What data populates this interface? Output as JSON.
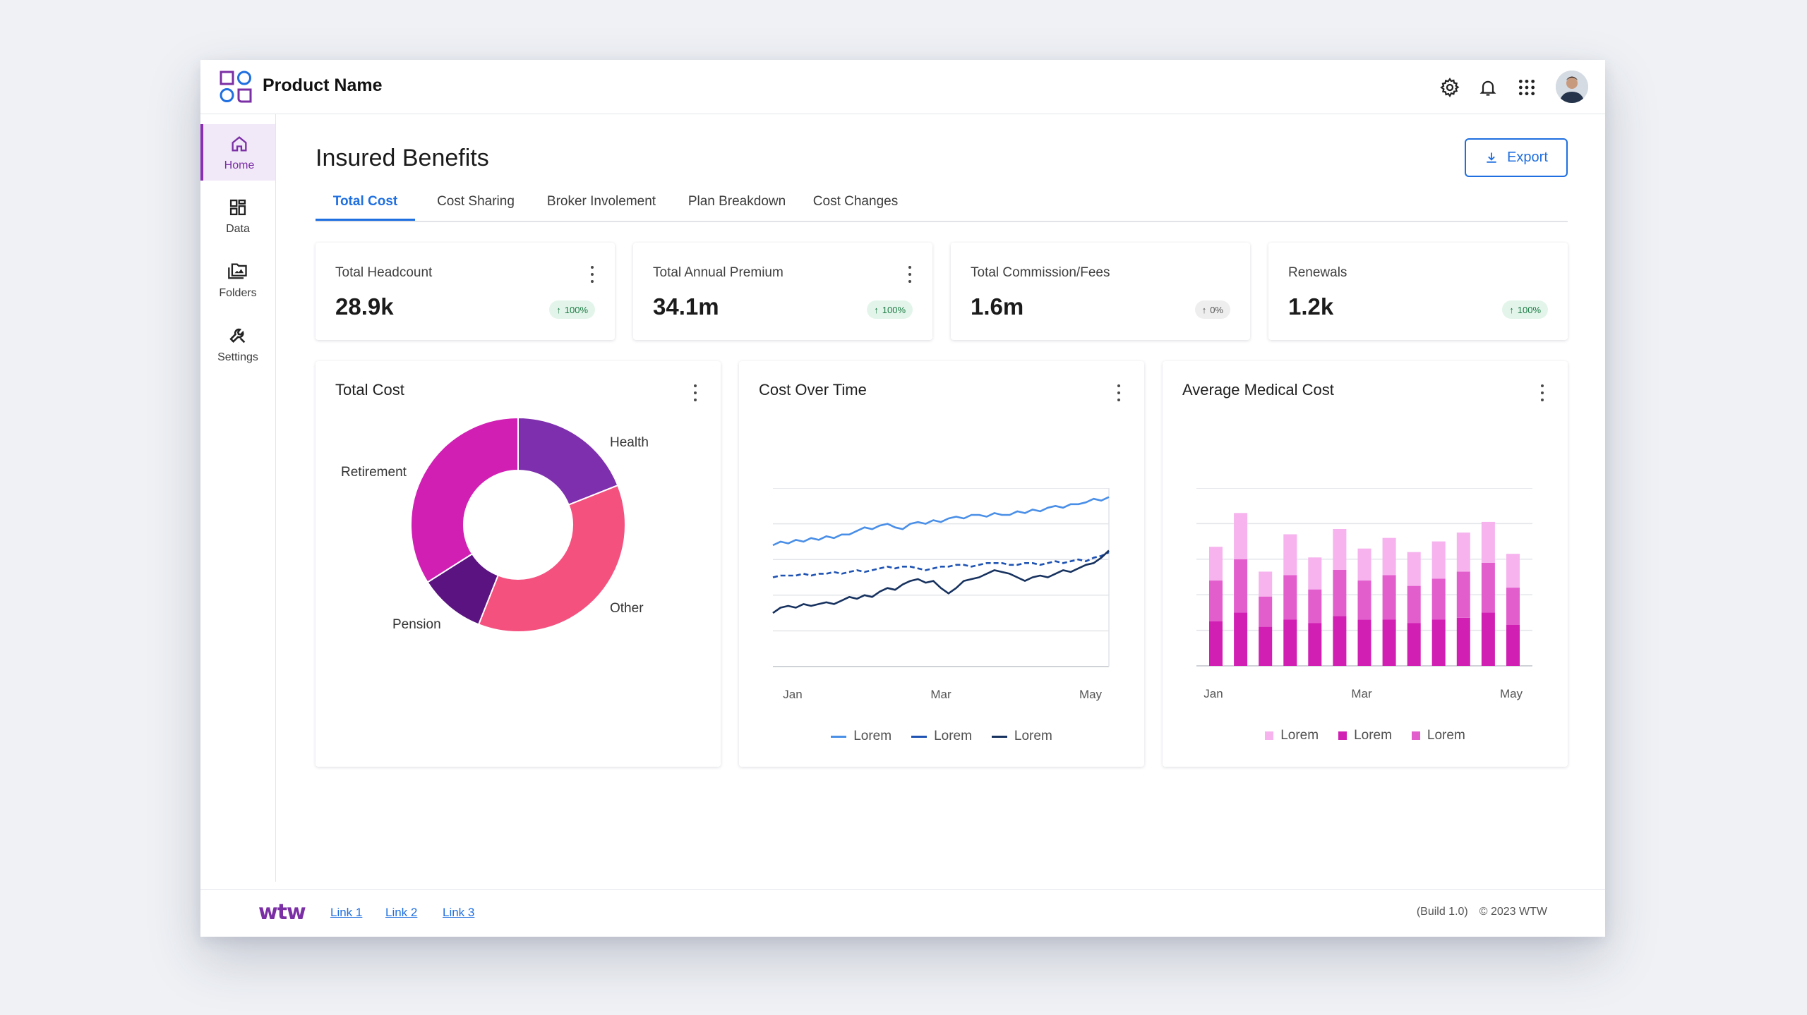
{
  "header": {
    "product_name": "Product Name",
    "icons": [
      "gear-icon",
      "bell-icon",
      "apps-grid-icon"
    ]
  },
  "sidebar": {
    "items": [
      {
        "label": "Home",
        "icon": "home-icon",
        "active": true
      },
      {
        "label": "Data",
        "icon": "dashboard-icon",
        "active": false
      },
      {
        "label": "Folders",
        "icon": "folders-icon",
        "active": false
      },
      {
        "label": "Settings",
        "icon": "wrench-icon",
        "active": false
      }
    ]
  },
  "page": {
    "title": "Insured Benefits",
    "export_label": "Export"
  },
  "tabs": [
    {
      "label": "Total Cost",
      "active": true
    },
    {
      "label": "Cost Sharing",
      "active": false
    },
    {
      "label": "Broker Involement",
      "active": false
    },
    {
      "label": "Plan Breakdown",
      "active": false
    },
    {
      "label": "Cost Changes",
      "active": false
    }
  ],
  "kpis": [
    {
      "label": "Total Headcount",
      "value": "28.9k",
      "badge": "100%",
      "trend": "up",
      "menu": true
    },
    {
      "label": "Total Annual Premium",
      "value": "34.1m",
      "badge": "100%",
      "trend": "up",
      "menu": true
    },
    {
      "label": "Total Commission/Fees",
      "value": "1.6m",
      "badge": "0%",
      "trend": "flat",
      "menu": false
    },
    {
      "label": "Renewals",
      "value": "1.2k",
      "badge": "100%",
      "trend": "up",
      "menu": false
    }
  ],
  "charts": {
    "total_cost": {
      "title": "Total Cost"
    },
    "cost_over_time": {
      "title": "Cost Over Time",
      "legend": [
        "Lorem",
        "Lorem",
        "Lorem"
      ]
    },
    "avg_medical": {
      "title": "Average Medical Cost",
      "legend": [
        "Lorem",
        "Lorem",
        "Lorem"
      ]
    }
  },
  "chart_data": [
    {
      "type": "pie",
      "title": "Total Cost",
      "labels": [
        "Health",
        "Other",
        "Pension",
        "Retirement"
      ],
      "values": [
        19,
        37,
        10,
        34
      ],
      "colors": [
        "#7e2fae",
        "#f4517f",
        "#5a1380",
        "#d11fb4"
      ]
    },
    {
      "type": "line",
      "title": "Cost Over Time",
      "x_ticks": [
        "Jan",
        "Mar",
        "May"
      ],
      "series": [
        {
          "name": "Lorem",
          "color": "#4a8fe7",
          "dash": false,
          "values": [
            68,
            70,
            69,
            71,
            70,
            72,
            71,
            73,
            72,
            74,
            74,
            76,
            78,
            77,
            79,
            80,
            78,
            77,
            80,
            81,
            80,
            82,
            81,
            83,
            84,
            83,
            85,
            85,
            84,
            86,
            85,
            85,
            87,
            86,
            88,
            87,
            89,
            90,
            89,
            91,
            91,
            92,
            94,
            93,
            95
          ]
        },
        {
          "name": "Lorem",
          "color": "#1f53b3",
          "dash": true,
          "values": [
            50,
            51,
            51,
            51,
            52,
            51,
            52,
            52,
            53,
            52,
            53,
            54,
            53,
            54,
            55,
            56,
            55,
            56,
            56,
            55,
            54,
            55,
            56,
            56,
            57,
            57,
            56,
            57,
            58,
            58,
            58,
            57,
            57,
            58,
            58,
            57,
            58,
            59,
            58,
            59,
            60,
            59,
            61,
            62,
            64
          ]
        },
        {
          "name": "Lorem",
          "color": "#17325f",
          "dash": false,
          "values": [
            30,
            33,
            34,
            33,
            35,
            34,
            35,
            36,
            35,
            37,
            39,
            38,
            40,
            39,
            42,
            44,
            43,
            46,
            48,
            49,
            47,
            48,
            44,
            41,
            44,
            48,
            49,
            50,
            52,
            54,
            53,
            52,
            50,
            48,
            50,
            51,
            50,
            52,
            54,
            53,
            55,
            57,
            58,
            61,
            65
          ]
        }
      ],
      "ylim": [
        0,
        100
      ],
      "grid": true
    },
    {
      "type": "bar",
      "title": "Average Medical Cost",
      "stacked": true,
      "x_ticks": [
        "Jan",
        "Mar",
        "May"
      ],
      "series": [
        {
          "name": "Lorem",
          "color": "#f6b3ee",
          "values": [
            19,
            26,
            14,
            23,
            18,
            23,
            18,
            21,
            19,
            21,
            22,
            23,
            19
          ]
        },
        {
          "name": "Lorem",
          "color": "#d11fb4",
          "values": [
            25,
            30,
            22,
            26,
            24,
            28,
            26,
            26,
            24,
            26,
            27,
            30,
            23
          ]
        },
        {
          "name": "Lorem",
          "color": "#e35ecd",
          "values": [
            23,
            30,
            17,
            25,
            19,
            26,
            22,
            25,
            21,
            23,
            26,
            28,
            21
          ]
        }
      ],
      "ylim": [
        0,
        100
      ],
      "grid": true
    }
  ],
  "footer": {
    "logo_text": "wtw",
    "links": [
      "Link 1",
      "Link 2",
      "Link 3"
    ],
    "build": "(Build 1.0)",
    "copyright": "© 2023 WTW"
  }
}
